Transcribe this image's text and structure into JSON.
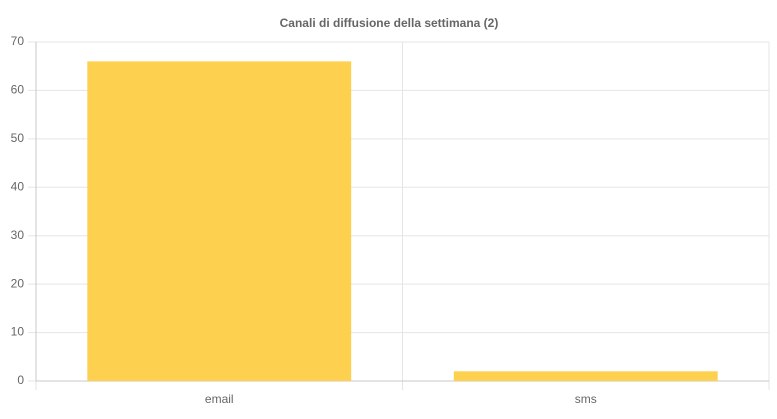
{
  "chart_data": {
    "type": "bar",
    "title": "Canali di diffusione della settimana (2)",
    "categories": [
      "email",
      "sms"
    ],
    "values": [
      66,
      2
    ],
    "color": "#fdd04f",
    "ylim": [
      0,
      70
    ],
    "yticks": [
      0,
      10,
      20,
      30,
      40,
      50,
      60,
      70
    ],
    "grid": true
  }
}
